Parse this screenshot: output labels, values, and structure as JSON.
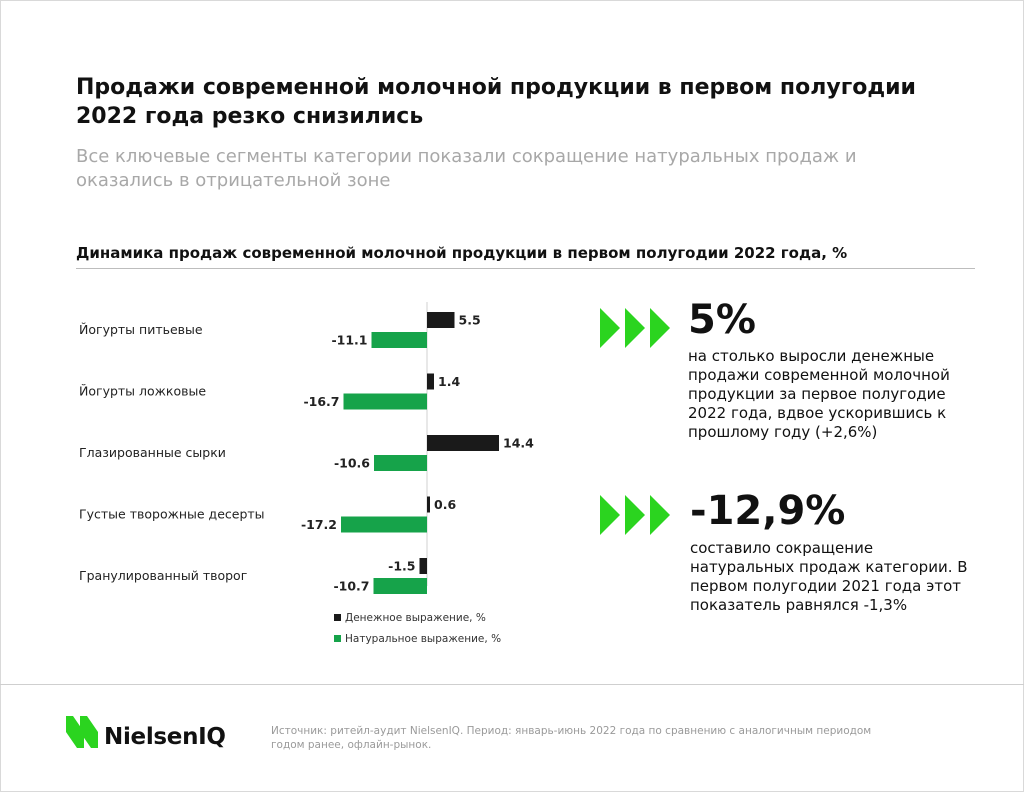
{
  "header": {
    "title": "Продажи современной молочной продукции в первом полугодии 2022 года резко снизились",
    "subtitle": "Все ключевые сегменты категории показали сокращение натуральных продаж и оказались в отрицательной зоне"
  },
  "chart_data": {
    "type": "bar",
    "orientation": "horizontal",
    "title": "Динамика продаж современной молочной продукции в первом полугодии 2022 года, %",
    "categories": [
      "Йогурты питьевые",
      "Йогурты ложковые",
      "Глазированные сырки",
      "Густые творожные десерты",
      "Гранулированный творог"
    ],
    "series": [
      {
        "name": "Денежное выражение, %",
        "color": "#1a1a1a",
        "values": [
          5.5,
          1.4,
          14.4,
          0.6,
          -1.5
        ]
      },
      {
        "name": "Натуральное выражение, %",
        "color": "#16a34a",
        "values": [
          -11.1,
          -16.7,
          -10.6,
          -17.2,
          -10.7
        ]
      }
    ],
    "xlim": [
      -20,
      20
    ],
    "grid": false,
    "legend": "bottom"
  },
  "kpis": [
    {
      "value": "5%",
      "text": "на столько выросли денежные продажи современной молочной продукции за первое полугодие 2022 года, вдвое ускорившись к прошлому году (+2,6%)"
    },
    {
      "value": "-12,9%",
      "text": "составило сокращение натуральных продаж категории. В первом полугодии 2021 года этот показатель равнялся -1,3%"
    }
  ],
  "footer": {
    "brand": "NielsenIQ",
    "source": "Источник: ритейл-аудит NielsenIQ. Период: январь-июнь 2022 года по сравнению с аналогичным периодом годом ранее, офлайн-рынок."
  },
  "colors": {
    "accent": "#2bd41f",
    "money": "#1a1a1a",
    "volume": "#16a34a",
    "subtitle": "#a8a8a8"
  },
  "icons": {
    "kpi": "triple-chevron-right-icon",
    "brand": "nielseniq-logo"
  }
}
